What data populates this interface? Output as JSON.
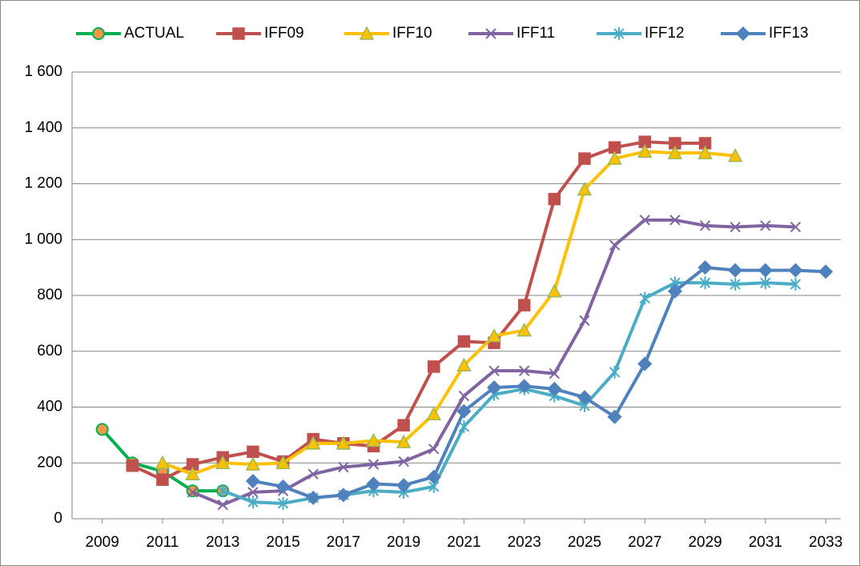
{
  "chart_data": {
    "type": "line",
    "x": [
      2009,
      2010,
      2011,
      2012,
      2013,
      2014,
      2015,
      2016,
      2017,
      2018,
      2019,
      2020,
      2021,
      2022,
      2023,
      2024,
      2025,
      2026,
      2027,
      2028,
      2029,
      2030,
      2031,
      2032,
      2033
    ],
    "series": [
      {
        "name": "ACTUAL",
        "color": "#00b050",
        "marker": "circle",
        "marker_color": "#f79646",
        "values": [
          320,
          200,
          170,
          100,
          100,
          null,
          null,
          null,
          null,
          null,
          null,
          null,
          null,
          null,
          null,
          null,
          null,
          null,
          null,
          null,
          null,
          null,
          null,
          null,
          null
        ]
      },
      {
        "name": "IFF09",
        "color": "#c0504d",
        "marker": "square",
        "marker_color": "#c0504d",
        "values": [
          null,
          190,
          140,
          195,
          220,
          240,
          205,
          285,
          270,
          260,
          335,
          545,
          635,
          630,
          765,
          1145,
          1290,
          1330,
          1350,
          1345,
          1345,
          null,
          null,
          null,
          null
        ]
      },
      {
        "name": "IFF10",
        "color": "#ffc000",
        "marker": "triangle",
        "marker_color": "#9bbb59",
        "values": [
          null,
          null,
          200,
          160,
          200,
          195,
          200,
          270,
          270,
          280,
          275,
          375,
          550,
          655,
          675,
          815,
          1180,
          1290,
          1315,
          1310,
          1310,
          1300,
          null,
          null,
          null
        ]
      },
      {
        "name": "IFF11",
        "color": "#8064a2",
        "marker": "x",
        "marker_color": "#8064a2",
        "values": [
          null,
          null,
          null,
          95,
          50,
          95,
          100,
          160,
          185,
          195,
          205,
          250,
          440,
          530,
          530,
          520,
          710,
          980,
          1070,
          1070,
          1050,
          1045,
          1050,
          1045,
          null
        ]
      },
      {
        "name": "IFF12",
        "color": "#4bacc6",
        "marker": "star",
        "marker_color": "#4bacc6",
        "values": [
          null,
          null,
          null,
          null,
          100,
          60,
          55,
          75,
          85,
          100,
          95,
          115,
          330,
          445,
          465,
          440,
          405,
          525,
          790,
          845,
          845,
          840,
          845,
          840,
          null
        ]
      },
      {
        "name": "IFF13",
        "color": "#4f81bd",
        "marker": "diamond",
        "marker_color": "#4f81bd",
        "values": [
          null,
          null,
          null,
          null,
          null,
          135,
          115,
          75,
          85,
          125,
          120,
          150,
          385,
          470,
          475,
          465,
          435,
          365,
          555,
          815,
          900,
          890,
          890,
          890,
          885
        ]
      }
    ],
    "xlim": [
      2008,
      2033.5
    ],
    "xticks": [
      2009,
      2011,
      2013,
      2015,
      2017,
      2019,
      2021,
      2023,
      2025,
      2027,
      2029,
      2031,
      2033
    ],
    "ylim": [
      0,
      1600
    ],
    "yticks": [
      0,
      200,
      400,
      600,
      800,
      {
        "value": 1000,
        "label": "1 000"
      },
      {
        "value": 1200,
        "label": "1 200"
      },
      {
        "value": 1400,
        "label": "1 400"
      },
      {
        "value": 1600,
        "label": "1 600"
      }
    ],
    "grid": true,
    "legend": "top"
  }
}
